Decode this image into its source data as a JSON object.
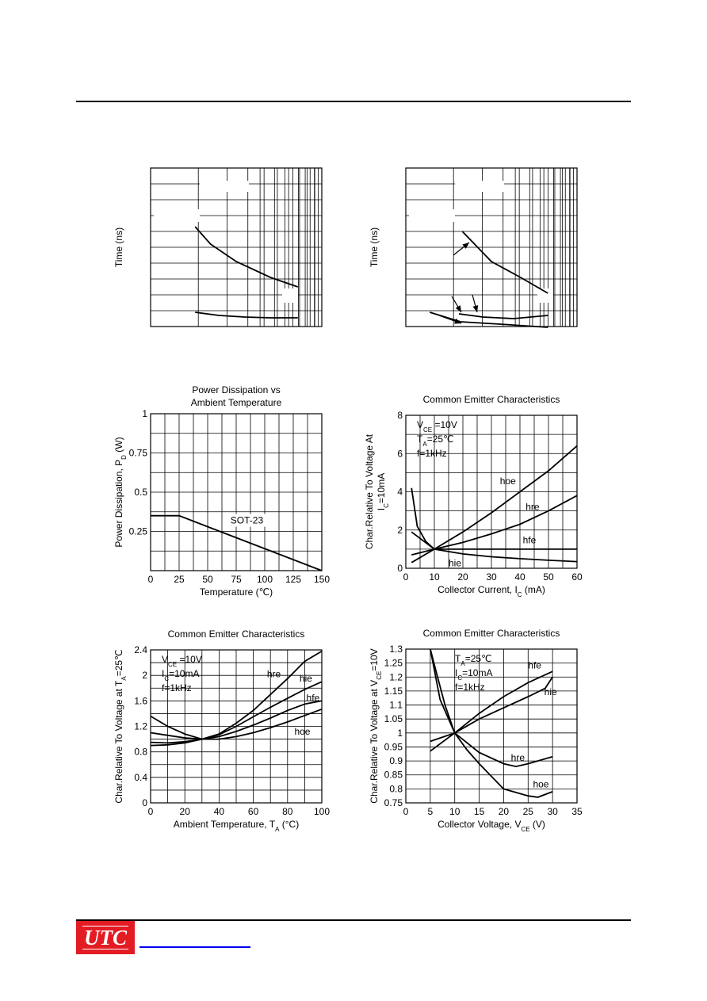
{
  "logo": {
    "text": "UTC"
  },
  "charts": [
    {
      "id": "time-a",
      "type": "line",
      "xlim": [
        0,
        10
      ],
      "ylim": [
        0,
        10
      ],
      "ylabel": "Time (ns)",
      "x_ticks": [],
      "y_ticks": [],
      "series": [
        {
          "x": [
            2.6,
            3.5,
            5,
            7,
            8.6
          ],
          "y": [
            6.3,
            5.2,
            4.1,
            3.1,
            2.5
          ]
        },
        {
          "x": [
            2.6,
            4,
            5.5,
            7,
            8.6
          ],
          "y": [
            0.9,
            0.7,
            0.6,
            0.55,
            0.55
          ]
        }
      ],
      "annotations": []
    },
    {
      "id": "time-b",
      "type": "line",
      "xlim": [
        0,
        10
      ],
      "ylim": [
        0,
        10
      ],
      "ylabel": "Time (ns)",
      "x_ticks": [],
      "y_ticks": [],
      "series": [
        {
          "x": [
            3.3,
            5,
            6.7,
            8.3
          ],
          "y": [
            6,
            4.1,
            3.1,
            2.1
          ]
        },
        {
          "x": [
            3.1,
            4.5,
            6.3,
            8.3
          ],
          "y": [
            0.8,
            0.6,
            0.5,
            0.7
          ]
        },
        {
          "x": [
            1.4,
            3.2,
            5.5,
            8.3
          ],
          "y": [
            0.9,
            0.3,
            0.15,
            -0.05
          ]
        }
      ],
      "annotations": []
    },
    {
      "id": "power-dissipation",
      "type": "line",
      "title": [
        "Power Dissipation vs",
        "Ambient Temperature"
      ],
      "xlabel": "Temperature (℃)",
      "ylabel": "Power Dissipation, P",
      "ylabel_sub": "D",
      "ylabel_suffix": " (W)",
      "xlim": [
        0,
        150
      ],
      "ylim": [
        0,
        1
      ],
      "x_ticks": [
        "0",
        "25",
        "50",
        "75",
        "100",
        "125",
        "150"
      ],
      "y_ticks": [
        "",
        "0.25",
        "0.5",
        "0.75",
        "1"
      ],
      "series": [
        {
          "name": "SOT-23",
          "x": [
            0,
            25,
            150
          ],
          "y": [
            0.35,
            0.35,
            0
          ]
        }
      ],
      "annotations": [
        {
          "text": "SOT-23",
          "x": 70,
          "y": 0.3
        }
      ]
    },
    {
      "id": "ce-current",
      "type": "line",
      "title": [
        "Common Emitter Characteristics"
      ],
      "xlabel": "Collector Current, I",
      "xlabel_sub": "C",
      "xlabel_suffix": " (mA)",
      "ylabel": "Char.Relative To Voltage At",
      "ylabel2": "I",
      "ylabel2_sub": "C",
      "ylabel2_suffix": "=10mA",
      "xlim": [
        0,
        60
      ],
      "ylim": [
        0,
        8
      ],
      "x_ticks": [
        "0",
        "10",
        "20",
        "30",
        "40",
        "50",
        "60"
      ],
      "y_ticks": [
        "0",
        "2",
        "4",
        "6",
        "8"
      ],
      "conditions": [
        {
          "main": "V",
          "sub": "CE",
          "rest": " =10V"
        },
        {
          "main": "T",
          "sub": "A",
          "rest": "=25℃"
        },
        {
          "main": "f=1kHz",
          "sub": "",
          "rest": ""
        }
      ],
      "series": [
        {
          "name": "hoe",
          "x": [
            2,
            10,
            20,
            30,
            40,
            50,
            60
          ],
          "y": [
            0.3,
            1,
            1.9,
            2.9,
            4,
            5.1,
            6.4
          ]
        },
        {
          "name": "hre",
          "x": [
            2,
            10,
            20,
            30,
            40,
            50,
            60
          ],
          "y": [
            1.9,
            1,
            1.35,
            1.8,
            2.3,
            3,
            3.8
          ]
        },
        {
          "name": "hfe",
          "x": [
            2,
            10,
            20,
            30,
            40,
            50,
            60
          ],
          "y": [
            0.7,
            1,
            1,
            1,
            1,
            1,
            1
          ]
        },
        {
          "name": "hie",
          "x": [
            2,
            4,
            7,
            10,
            20,
            30,
            40,
            50,
            60
          ],
          "y": [
            4.2,
            2.2,
            1.4,
            1,
            0.75,
            0.6,
            0.5,
            0.42,
            0.35
          ]
        }
      ],
      "annotations": [
        {
          "text": "hoe",
          "x": 33,
          "y": 4.4
        },
        {
          "text": "hre",
          "x": 42,
          "y": 3.05
        },
        {
          "text": "hfe",
          "x": 41,
          "y": 1.3
        },
        {
          "text": "hie",
          "x": 15,
          "y": 0.1
        }
      ]
    },
    {
      "id": "ce-temperature",
      "type": "line",
      "title": [
        "Common Emitter Characteristics"
      ],
      "xlabel": "Ambient Temperature, T",
      "xlabel_sub": "A",
      "xlabel_suffix": " (°C)",
      "ylabel": "Char.Relative To Voltage at T",
      "ylabel_sub": "A",
      "ylabel_suffix": "=25℃",
      "xlim": [
        0,
        100
      ],
      "ylim": [
        0,
        2.4
      ],
      "x_ticks": [
        "0",
        "20",
        "40",
        "60",
        "80",
        "100"
      ],
      "y_ticks": [
        "0",
        "0.4",
        "0.8",
        "1.2",
        "1.6",
        "2",
        "2.4"
      ],
      "conditions": [
        {
          "main": "V",
          "sub": "CE",
          "rest": " =10V"
        },
        {
          "main": "I",
          "sub": "C",
          "rest": "=10mA"
        },
        {
          "main": "f=1kHz",
          "sub": "",
          "rest": ""
        }
      ],
      "series": [
        {
          "name": "hre",
          "x": [
            0,
            10,
            20,
            30,
            40,
            50,
            60,
            70,
            80,
            90,
            100
          ],
          "y": [
            0.9,
            0.91,
            0.94,
            1,
            1.08,
            1.25,
            1.45,
            1.7,
            1.95,
            2.22,
            2.38
          ]
        },
        {
          "name": "hie",
          "x": [
            0,
            10,
            20,
            30,
            40,
            50,
            60,
            70,
            80,
            90,
            100
          ],
          "y": [
            0.95,
            0.94,
            0.96,
            1,
            1.07,
            1.2,
            1.35,
            1.5,
            1.64,
            1.78,
            1.9
          ]
        },
        {
          "name": "hfe",
          "x": [
            0,
            10,
            20,
            30,
            40,
            50,
            60,
            70,
            80,
            90,
            100
          ],
          "y": [
            1.1,
            1.06,
            1.02,
            1,
            1.04,
            1.12,
            1.22,
            1.33,
            1.45,
            1.55,
            1.6
          ]
        },
        {
          "name": "hoe",
          "x": [
            0,
            10,
            20,
            30,
            40,
            50,
            60,
            70,
            80,
            90,
            100
          ],
          "y": [
            1.36,
            1.2,
            1.08,
            1,
            1,
            1.04,
            1.1,
            1.18,
            1.27,
            1.37,
            1.47
          ]
        }
      ],
      "annotations": [
        {
          "text": "hre",
          "x": 68,
          "y": 1.97
        },
        {
          "text": "hie",
          "x": 87,
          "y": 1.9
        },
        {
          "text": "hfe",
          "x": 91,
          "y": 1.6
        },
        {
          "text": "hoe",
          "x": 84,
          "y": 1.07
        }
      ]
    },
    {
      "id": "ce-voltage",
      "type": "line",
      "title": [
        "Common Emitter Characteristics"
      ],
      "xlabel": "Collector Voltage, V",
      "xlabel_sub": "CE",
      "xlabel_suffix": " (V)",
      "ylabel": "Char.Relative To Voltage at V",
      "ylabel_sub": "CE",
      "ylabel_suffix": "=10V",
      "xlim": [
        0,
        35
      ],
      "ylim": [
        0.75,
        1.3
      ],
      "x_ticks": [
        "0",
        "5",
        "10",
        "15",
        "20",
        "25",
        "30",
        "35"
      ],
      "y_ticks": [
        "0.75",
        "0.8",
        "0.85",
        "0.9",
        "0.95",
        "1",
        "1.05",
        "1.1",
        "1.15",
        "1.2",
        "1.25",
        "1.3"
      ],
      "conditions": [
        {
          "main": "T",
          "sub": "A",
          "rest": "=25℃"
        },
        {
          "main": "I",
          "sub": "C",
          "rest": "=10mA"
        },
        {
          "main": "f=1kHz",
          "sub": "",
          "rest": ""
        }
      ],
      "series": [
        {
          "name": "hfe",
          "x": [
            5,
            10,
            15,
            20,
            25,
            30
          ],
          "y": [
            0.97,
            1,
            1.07,
            1.13,
            1.18,
            1.22
          ]
        },
        {
          "name": "hie",
          "x": [
            5,
            10,
            15,
            20,
            25,
            28.5,
            30
          ],
          "y": [
            0.935,
            1,
            1.05,
            1.09,
            1.13,
            1.16,
            1.2
          ]
        },
        {
          "name": "hre",
          "x": [
            5,
            7,
            10,
            15,
            20,
            22.5,
            25,
            30
          ],
          "y": [
            1.3,
            1.12,
            1,
            0.93,
            0.89,
            0.88,
            0.89,
            0.915
          ]
        },
        {
          "name": "hoe",
          "x": [
            5,
            6.5,
            8,
            10,
            12.5,
            15,
            20,
            25,
            27,
            30
          ],
          "y": [
            1.3,
            1.2,
            1.1,
            1,
            0.94,
            0.89,
            0.8,
            0.775,
            0.77,
            0.79
          ]
        }
      ],
      "annotations": [
        {
          "text": "hfe",
          "x": 25,
          "y": 1.23
        },
        {
          "text": "hie",
          "x": 28.3,
          "y": 1.135
        },
        {
          "text": "hre",
          "x": 21.5,
          "y": 0.9
        },
        {
          "text": "hoe",
          "x": 26,
          "y": 0.805
        }
      ]
    }
  ]
}
